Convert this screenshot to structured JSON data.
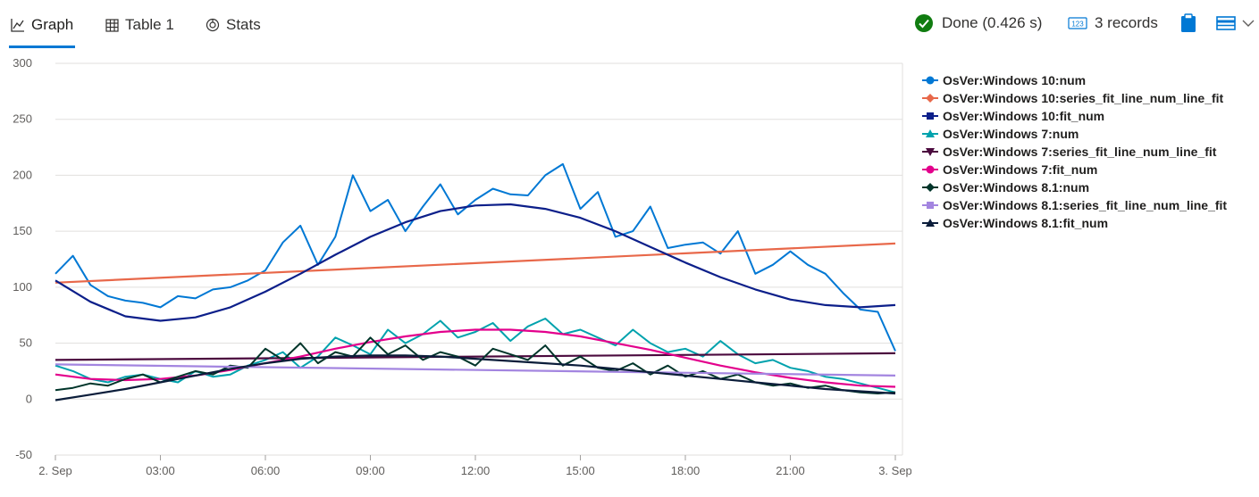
{
  "tabs": [
    {
      "label": "Graph",
      "icon": "line-chart-icon",
      "active": true
    },
    {
      "label": "Table 1",
      "icon": "table-icon",
      "active": false
    },
    {
      "label": "Stats",
      "icon": "stats-icon",
      "active": false
    }
  ],
  "status": {
    "done_label": "Done (0.426 s)",
    "records_label": "3 records",
    "done_color": "#107c10",
    "accent_color": "#0078d4"
  },
  "chart_data": {
    "type": "line",
    "title": "",
    "xlabel": "",
    "ylabel": "",
    "ylim": [
      -50,
      300
    ],
    "yticks": [
      -50,
      0,
      50,
      100,
      150,
      200,
      250,
      300
    ],
    "xlim": [
      "2. Sep 00:00",
      "3. Sep 00:00"
    ],
    "xticks": [
      {
        "hour": 0,
        "label": "2. Sep"
      },
      {
        "hour": 3,
        "label": "03:00"
      },
      {
        "hour": 6,
        "label": "06:00"
      },
      {
        "hour": 9,
        "label": "09:00"
      },
      {
        "hour": 12,
        "label": "12:00"
      },
      {
        "hour": 15,
        "label": "15:00"
      },
      {
        "hour": 18,
        "label": "18:00"
      },
      {
        "hour": 21,
        "label": "21:00"
      },
      {
        "hour": 24,
        "label": "3. Sep"
      }
    ],
    "grid": true,
    "legend_position": "right",
    "series": [
      {
        "name": "OsVer:Windows 10:num",
        "color": "#0078d4",
        "marker": "circle",
        "x_hours": [
          0,
          0.5,
          1,
          1.5,
          2,
          2.5,
          3,
          3.5,
          4,
          4.5,
          5,
          5.5,
          6,
          6.5,
          7,
          7.5,
          8,
          8.5,
          9,
          9.5,
          10,
          10.5,
          11,
          11.5,
          12,
          12.5,
          13,
          13.5,
          14,
          14.5,
          15,
          15.5,
          16,
          16.5,
          17,
          17.5,
          18,
          18.5,
          19,
          19.5,
          20,
          20.5,
          21,
          21.5,
          22,
          22.5,
          23,
          23.5,
          24
        ],
        "values": [
          112,
          128,
          102,
          92,
          88,
          86,
          82,
          92,
          90,
          98,
          100,
          106,
          115,
          140,
          155,
          120,
          145,
          200,
          168,
          178,
          150,
          172,
          192,
          165,
          178,
          188,
          183,
          182,
          200,
          210,
          170,
          185,
          145,
          150,
          172,
          135,
          138,
          140,
          130,
          150,
          112,
          120,
          132,
          120,
          112,
          95,
          80,
          78,
          43
        ]
      },
      {
        "name": "OsVer:Windows 10:series_fit_line_num_line_fit",
        "color": "#e8684a",
        "marker": "diamond",
        "x_hours": [
          0,
          24
        ],
        "values": [
          104,
          139
        ]
      },
      {
        "name": "OsVer:Windows 10:fit_num",
        "color": "#0c1f8a",
        "marker": "square",
        "x_hours": [
          0,
          1,
          2,
          3,
          4,
          5,
          6,
          7,
          8,
          9,
          10,
          11,
          12,
          13,
          14,
          15,
          16,
          17,
          18,
          19,
          20,
          21,
          22,
          23,
          24
        ],
        "values": [
          106,
          87,
          74,
          70,
          73,
          82,
          96,
          112,
          129,
          145,
          158,
          168,
          173,
          174,
          170,
          162,
          150,
          136,
          122,
          109,
          98,
          89,
          84,
          82,
          84
        ]
      },
      {
        "name": "OsVer:Windows 7:num",
        "color": "#00a2ad",
        "marker": "triangle",
        "x_hours": [
          0,
          0.5,
          1,
          1.5,
          2,
          2.5,
          3,
          3.5,
          4,
          4.5,
          5,
          5.5,
          6,
          6.5,
          7,
          7.5,
          8,
          8.5,
          9,
          9.5,
          10,
          10.5,
          11,
          11.5,
          12,
          12.5,
          13,
          13.5,
          14,
          14.5,
          15,
          15.5,
          16,
          16.5,
          17,
          17.5,
          18,
          18.5,
          19,
          19.5,
          20,
          20.5,
          21,
          21.5,
          22,
          22.5,
          23,
          23.5,
          24
        ],
        "values": [
          30,
          25,
          18,
          15,
          20,
          22,
          18,
          15,
          25,
          20,
          22,
          30,
          35,
          42,
          28,
          38,
          55,
          48,
          40,
          62,
          50,
          58,
          70,
          55,
          60,
          68,
          52,
          65,
          72,
          58,
          62,
          55,
          48,
          62,
          50,
          42,
          45,
          38,
          52,
          40,
          32,
          35,
          28,
          25,
          20,
          18,
          14,
          10,
          6
        ]
      },
      {
        "name": "OsVer:Windows 7:series_fit_line_num_line_fit",
        "color": "#4b0a3e",
        "marker": "triangle-down",
        "x_hours": [
          0,
          24
        ],
        "values": [
          35,
          41
        ]
      },
      {
        "name": "OsVer:Windows 7:fit_num",
        "color": "#e3008c",
        "marker": "circle",
        "x_hours": [
          0,
          1,
          2,
          3,
          4,
          5,
          6,
          7,
          8,
          9,
          10,
          11,
          12,
          13,
          14,
          15,
          16,
          17,
          18,
          19,
          20,
          21,
          22,
          23,
          24
        ],
        "values": [
          22,
          18,
          17,
          18,
          21,
          26,
          32,
          38,
          45,
          51,
          56,
          60,
          62,
          62,
          60,
          56,
          50,
          44,
          37,
          30,
          24,
          19,
          15,
          12,
          11
        ]
      },
      {
        "name": "OsVer:Windows 8.1:num",
        "color": "#00352a",
        "marker": "diamond",
        "x_hours": [
          0,
          0.5,
          1,
          1.5,
          2,
          2.5,
          3,
          3.5,
          4,
          4.5,
          5,
          5.5,
          6,
          6.5,
          7,
          7.5,
          8,
          8.5,
          9,
          9.5,
          10,
          10.5,
          11,
          11.5,
          12,
          12.5,
          13,
          13.5,
          14,
          14.5,
          15,
          15.5,
          16,
          16.5,
          17,
          17.5,
          18,
          18.5,
          19,
          19.5,
          20,
          20.5,
          21,
          21.5,
          22,
          22.5,
          23,
          23.5,
          24
        ],
        "values": [
          8,
          10,
          14,
          12,
          18,
          22,
          15,
          20,
          25,
          22,
          30,
          28,
          45,
          35,
          50,
          32,
          42,
          38,
          55,
          40,
          48,
          35,
          42,
          38,
          30,
          45,
          40,
          35,
          48,
          30,
          38,
          28,
          25,
          32,
          22,
          30,
          20,
          25,
          18,
          22,
          15,
          12,
          14,
          10,
          12,
          8,
          6,
          5,
          6
        ]
      },
      {
        "name": "OsVer:Windows 8.1:series_fit_line_num_line_fit",
        "color": "#a385e0",
        "marker": "square",
        "x_hours": [
          0,
          24
        ],
        "values": [
          31,
          21
        ]
      },
      {
        "name": "OsVer:Windows 8.1:fit_num",
        "color": "#0b1d3a",
        "marker": "triangle",
        "x_hours": [
          0,
          1,
          2,
          3,
          4,
          5,
          6,
          7,
          8,
          9,
          10,
          11,
          12,
          13,
          14,
          15,
          16,
          17,
          18,
          19,
          20,
          21,
          22,
          23,
          24
        ],
        "values": [
          -1,
          4,
          9,
          15,
          21,
          27,
          32,
          36,
          38,
          39,
          39,
          38,
          36,
          34,
          32,
          30,
          27,
          24,
          21,
          18,
          15,
          12,
          9,
          7,
          5
        ]
      }
    ]
  }
}
